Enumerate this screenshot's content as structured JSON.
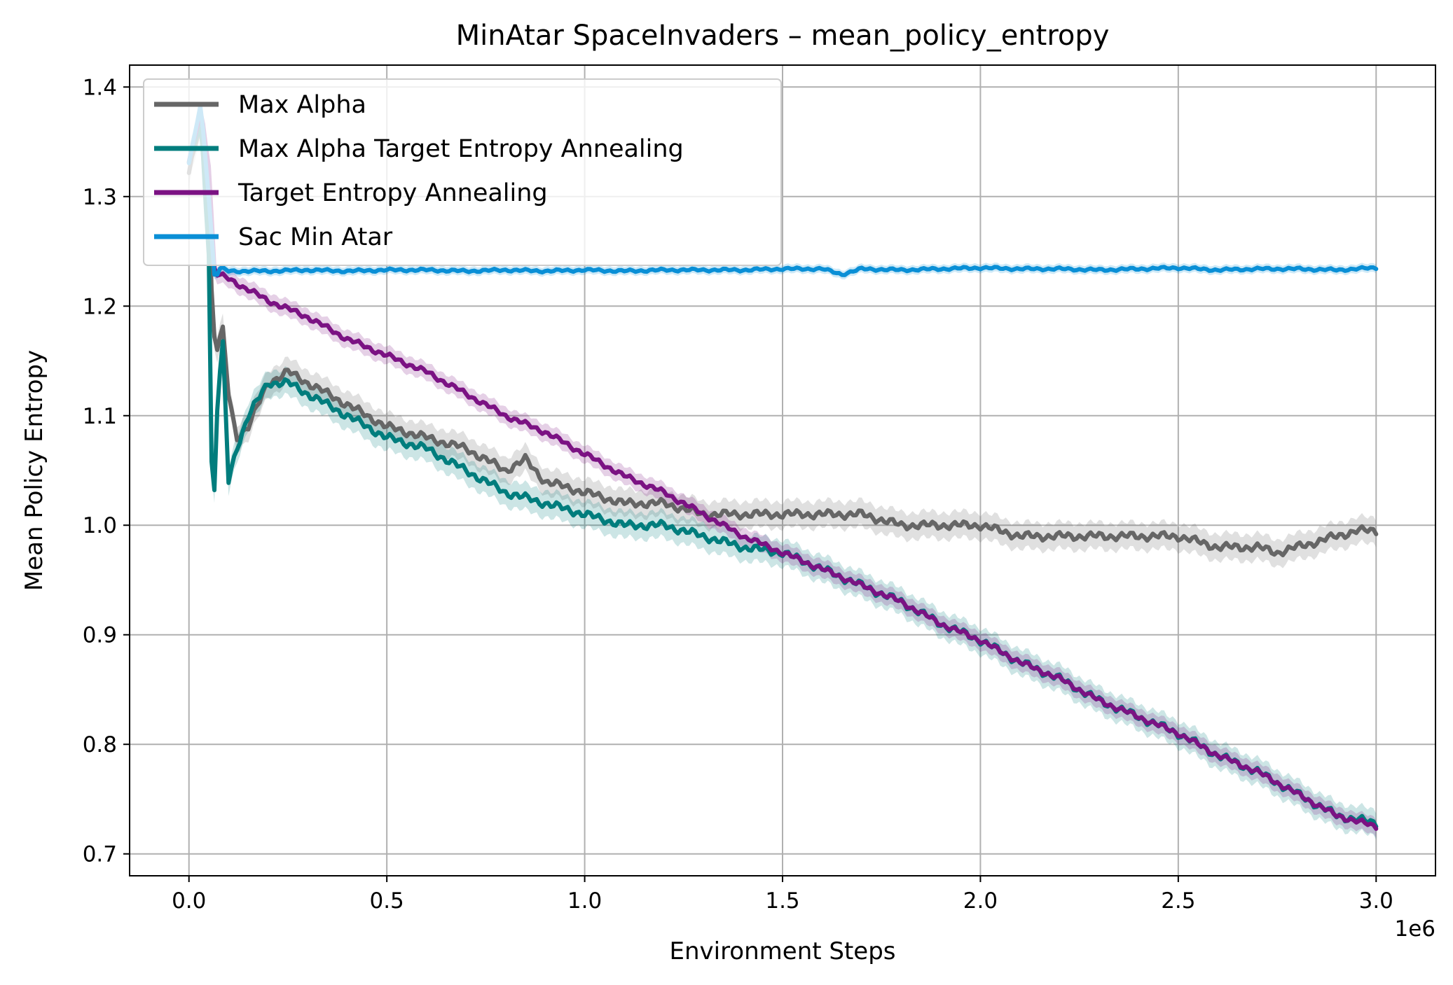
{
  "chart_data": {
    "type": "line",
    "title": "MinAtar SpaceInvaders – mean_policy_entropy",
    "xlabel": "Environment Steps",
    "ylabel": "Mean Policy Entropy",
    "x_offset_label": "1e6",
    "xlim": [
      -0.15,
      3.15
    ],
    "ylim": [
      0.68,
      1.42
    ],
    "xticks": [
      0.0,
      0.5,
      1.0,
      1.5,
      2.0,
      2.5,
      3.0
    ],
    "xtick_labels": [
      "0.0",
      "0.5",
      "1.0",
      "1.5",
      "2.0",
      "2.5",
      "3.0"
    ],
    "yticks": [
      0.7,
      0.8,
      0.9,
      1.0,
      1.1,
      1.2,
      1.3,
      1.4
    ],
    "ytick_labels": [
      "0.7",
      "0.8",
      "0.9",
      "1.0",
      "1.1",
      "1.2",
      "1.3",
      "1.4"
    ],
    "grid": true,
    "legend": "top-left",
    "series": [
      {
        "name": "Max Alpha",
        "color": "#666666",
        "x": [
          0.0,
          0.03,
          0.05,
          0.06,
          0.07,
          0.085,
          0.1,
          0.12,
          0.15,
          0.2,
          0.25,
          0.3,
          0.4,
          0.5,
          0.6,
          0.7,
          0.8,
          0.85,
          0.9,
          1.0,
          1.1,
          1.2,
          1.3,
          1.4,
          1.5,
          1.6,
          1.7,
          1.8,
          1.9,
          2.0,
          2.1,
          2.2,
          2.3,
          2.4,
          2.5,
          2.6,
          2.7,
          2.75,
          2.8,
          2.9,
          2.95,
          3.0
        ],
        "y": [
          1.32,
          1.37,
          1.3,
          1.18,
          1.16,
          1.18,
          1.12,
          1.08,
          1.09,
          1.13,
          1.14,
          1.13,
          1.11,
          1.09,
          1.08,
          1.07,
          1.05,
          1.06,
          1.04,
          1.03,
          1.02,
          1.02,
          1.01,
          1.01,
          1.01,
          1.01,
          1.01,
          1.0,
          1.0,
          1.0,
          0.99,
          0.99,
          0.99,
          0.99,
          0.99,
          0.98,
          0.98,
          0.975,
          0.98,
          0.99,
          0.995,
          0.995
        ],
        "band": 0.012
      },
      {
        "name": "Max Alpha Target Entropy Annealing",
        "color": "#007d7d",
        "x": [
          0.0,
          0.03,
          0.05,
          0.06,
          0.07,
          0.085,
          0.1,
          0.12,
          0.15,
          0.2,
          0.25,
          0.3,
          0.4,
          0.5,
          0.6,
          0.7,
          0.8,
          0.9,
          1.0,
          1.1,
          1.2,
          1.3,
          1.4,
          1.5,
          1.6,
          1.7,
          1.8,
          1.9,
          2.0,
          2.1,
          2.2,
          2.3,
          2.4,
          2.5,
          2.6,
          2.7,
          2.8,
          2.9,
          3.0
        ],
        "y": [
          1.33,
          1.37,
          1.25,
          0.98,
          1.1,
          1.17,
          1.04,
          1.07,
          1.1,
          1.13,
          1.13,
          1.12,
          1.1,
          1.08,
          1.07,
          1.05,
          1.03,
          1.02,
          1.01,
          1.0,
          1.0,
          0.99,
          0.98,
          0.975,
          0.96,
          0.945,
          0.93,
          0.91,
          0.895,
          0.875,
          0.86,
          0.84,
          0.825,
          0.81,
          0.79,
          0.775,
          0.755,
          0.735,
          0.728
        ],
        "band": 0.012
      },
      {
        "name": "Target Entropy Annealing",
        "color": "#7b1283",
        "x": [
          0.0,
          0.03,
          0.05,
          0.065,
          0.1,
          0.2,
          0.3,
          0.4,
          0.5,
          0.6,
          0.7,
          0.8,
          0.9,
          1.0,
          1.1,
          1.2,
          1.3,
          1.4,
          1.5,
          1.6,
          1.7,
          1.8,
          1.9,
          2.0,
          2.1,
          2.2,
          2.3,
          2.4,
          2.5,
          2.6,
          2.7,
          2.8,
          2.9,
          3.0
        ],
        "y": [
          1.33,
          1.38,
          1.33,
          1.23,
          1.225,
          1.205,
          1.19,
          1.17,
          1.155,
          1.14,
          1.12,
          1.1,
          1.085,
          1.065,
          1.045,
          1.03,
          1.01,
          0.99,
          0.975,
          0.96,
          0.945,
          0.93,
          0.91,
          0.895,
          0.875,
          0.86,
          0.84,
          0.825,
          0.81,
          0.79,
          0.775,
          0.755,
          0.735,
          0.725
        ],
        "band": 0.008
      },
      {
        "name": "Sac Min Atar",
        "color": "#0a8fd6",
        "x": [
          0.0,
          0.03,
          0.05,
          0.065,
          0.08,
          0.1,
          0.2,
          0.3,
          0.4,
          0.5,
          0.6,
          0.7,
          0.8,
          0.9,
          1.0,
          1.1,
          1.2,
          1.3,
          1.4,
          1.5,
          1.6,
          1.65,
          1.7,
          1.8,
          1.9,
          2.0,
          2.1,
          2.2,
          2.3,
          2.4,
          2.5,
          2.6,
          2.7,
          2.8,
          2.9,
          3.0
        ],
        "y": [
          1.33,
          1.385,
          1.3,
          1.225,
          1.235,
          1.232,
          1.232,
          1.233,
          1.232,
          1.233,
          1.233,
          1.232,
          1.233,
          1.232,
          1.233,
          1.232,
          1.233,
          1.233,
          1.233,
          1.234,
          1.234,
          1.229,
          1.234,
          1.233,
          1.234,
          1.235,
          1.234,
          1.234,
          1.233,
          1.234,
          1.235,
          1.233,
          1.234,
          1.234,
          1.233,
          1.235
        ],
        "band": 0.004
      }
    ]
  }
}
